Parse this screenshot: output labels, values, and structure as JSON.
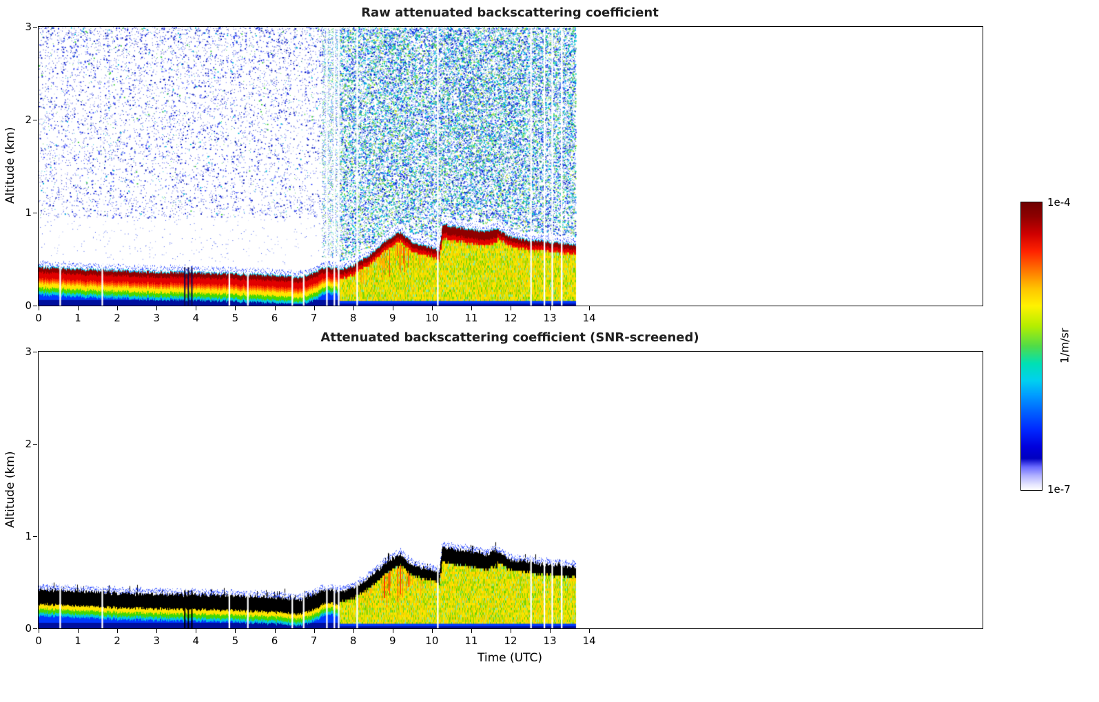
{
  "figure": {
    "background": "#ffffff"
  },
  "chart_data": [
    {
      "type": "heatmap",
      "title": "Raw attenuated backscattering coefficient",
      "xlabel": "",
      "ylabel": "Altitude (km)",
      "xlim": [
        0,
        24
      ],
      "ylim": [
        0,
        3
      ],
      "xticks": [
        0,
        1,
        2,
        3,
        4,
        5,
        6,
        7,
        8,
        9,
        10,
        11,
        12,
        13,
        14
      ],
      "yticks": [
        0,
        1,
        2,
        3
      ],
      "screened": false,
      "noise_overlay": true,
      "description": "Lidar attenuated backscatter time-height plot; aerosol layer top near 0.4 km at 0 UTC dipping to 0.31 km by 6.6 UTC, rising to 0.8 km at 9.2 UTC, stepping to 0.88 km at 10.3 UTC, easing to 0.66 km at 13.65 UTC; background noise speckle above the layer, denser after 7.5 UTC"
    },
    {
      "type": "heatmap",
      "title": "Attenuated backscattering coefficient (SNR-screened)",
      "xlabel": "Time (UTC)",
      "ylabel": "Altitude (km)",
      "xlim": [
        0,
        24
      ],
      "ylim": [
        0,
        3
      ],
      "xticks": [
        0,
        1,
        2,
        3,
        4,
        5,
        6,
        7,
        8,
        9,
        10,
        11,
        12,
        13,
        14
      ],
      "yticks": [
        0,
        1,
        2,
        3
      ],
      "screened": true,
      "noise_overlay": false,
      "description": "Same scene after SNR screening: noise removed above the layer; saturated layer cap rendered black"
    }
  ],
  "heatmap_model": {
    "time_end": 13.65,
    "layer_top_km": {
      "t": [
        0,
        0.5,
        1,
        2,
        3,
        4,
        5,
        6,
        6.6,
        7.0,
        7.3,
        7.7,
        8.0,
        8.4,
        8.8,
        9.0,
        9.2,
        9.45,
        9.7,
        10.0,
        10.18,
        10.26,
        10.6,
        11.0,
        11.4,
        11.6,
        12.0,
        12.5,
        13.0,
        13.65
      ],
      "alt": [
        0.42,
        0.41,
        0.4,
        0.38,
        0.37,
        0.36,
        0.35,
        0.33,
        0.31,
        0.36,
        0.42,
        0.4,
        0.44,
        0.55,
        0.7,
        0.76,
        0.8,
        0.7,
        0.66,
        0.63,
        0.6,
        0.88,
        0.85,
        0.83,
        0.8,
        0.84,
        0.74,
        0.71,
        0.69,
        0.66
      ]
    },
    "gaps_t": [
      0.55,
      1.62,
      4.85,
      5.32,
      6.45,
      6.74,
      7.33,
      7.52,
      7.63,
      8.1,
      10.15,
      12.52,
      12.86,
      13.06,
      13.3
    ],
    "gap_width_t": 0.04,
    "dark_spikes_t": [
      3.7,
      3.79,
      3.88
    ],
    "night_end_t": 7.2,
    "day_start_t": 7.65,
    "palette": {
      "deep_blue": "#000f9e",
      "blue": "#0038ff",
      "cyan": "#00c8e0",
      "green": "#46d800",
      "yellow": "#ffe400",
      "orange": "#ff8c00",
      "red": "#e00000",
      "dark_red": "#8f0000",
      "red_orange": "#ff3c00",
      "black_cap": "#000000",
      "fringe_blue": "#2a48ff",
      "fringe_light": "#90a4ff"
    },
    "mottle_colors": [
      [
        "#ffe400",
        0.34
      ],
      [
        "#e8e000",
        0.18
      ],
      [
        "#aade00",
        0.16
      ],
      [
        "#6cd400",
        0.12
      ],
      [
        "#ffc400",
        0.12
      ],
      [
        "#8ae8a0",
        0.08
      ]
    ],
    "noise": {
      "night": {
        "count": 6500,
        "alt_min": 0.95,
        "colors": [
          [
            "#2233dd",
            0.42
          ],
          [
            "#0a1ab8",
            0.25
          ],
          [
            "#4455ff",
            0.15
          ],
          [
            "#8899ee",
            0.08
          ],
          [
            "#00b8d8",
            0.06
          ],
          [
            "#44cc44",
            0.04
          ]
        ]
      },
      "night_low": {
        "count": 380,
        "colors": [
          [
            "#3a55ee",
            0.6
          ],
          [
            "#8899ee",
            0.4
          ]
        ]
      },
      "transition": {
        "count": 2200
      },
      "day": {
        "count": 30000,
        "colors": [
          [
            "#2244ee",
            0.28
          ],
          [
            "#0a1ac0",
            0.12
          ],
          [
            "#00c0e0",
            0.22
          ],
          [
            "#33cc66",
            0.13
          ],
          [
            "#7fdd33",
            0.09
          ],
          [
            "#88aaff",
            0.09
          ],
          [
            "#cce033",
            0.04
          ],
          [
            "#aaddee",
            0.03
          ]
        ]
      }
    }
  },
  "colorbar": {
    "label": "1/m/sr",
    "max_label": "1e-4",
    "min_label": "1e-7",
    "stops": [
      [
        0.0,
        "#6e0000"
      ],
      [
        0.05,
        "#8f0000"
      ],
      [
        0.11,
        "#cf0000"
      ],
      [
        0.17,
        "#ff2200"
      ],
      [
        0.24,
        "#ff7a00"
      ],
      [
        0.3,
        "#ffc400"
      ],
      [
        0.36,
        "#fff200"
      ],
      [
        0.43,
        "#b4ee00"
      ],
      [
        0.5,
        "#50dc48"
      ],
      [
        0.56,
        "#00e0b4"
      ],
      [
        0.62,
        "#00d0f0"
      ],
      [
        0.67,
        "#009cff"
      ],
      [
        0.73,
        "#0060ff"
      ],
      [
        0.79,
        "#0028ff"
      ],
      [
        0.85,
        "#0000dc"
      ],
      [
        0.89,
        "#0000c0"
      ],
      [
        0.92,
        "#6a6aff"
      ],
      [
        0.95,
        "#b0b0ff"
      ],
      [
        0.98,
        "#e4e4ff"
      ],
      [
        1.0,
        "#ffffff"
      ]
    ]
  }
}
